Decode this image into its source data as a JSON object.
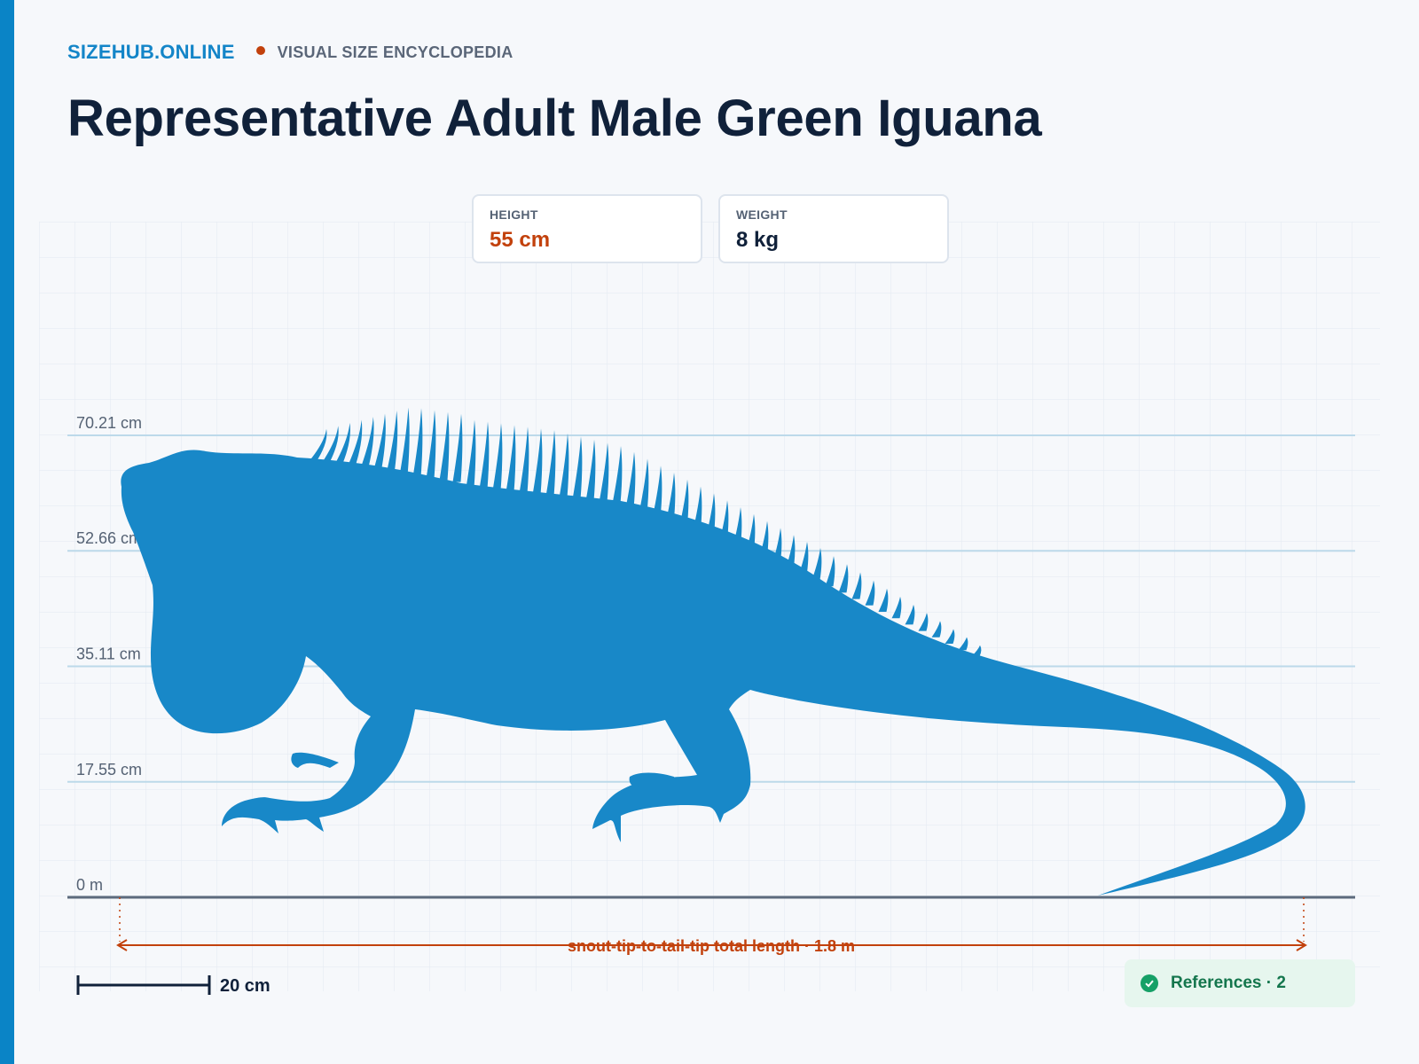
{
  "brand": {
    "name": "SIZEHUB.ONLINE",
    "tagline": "VISUAL SIZE ENCYCLOPEDIA"
  },
  "title": "Representative Adult Male Green Iguana",
  "stats": {
    "height": {
      "label": "HEIGHT",
      "value": "55 cm"
    },
    "weight": {
      "label": "WEIGHT",
      "value": "8 kg"
    }
  },
  "colors": {
    "accent_blue": "#0a84c6",
    "silhouette": "#1888c8",
    "accent_orange": "#c2410c",
    "reference_green": "#16a067"
  },
  "chart_data": {
    "type": "size-comparison",
    "subject": "green iguana silhouette",
    "unit": "cm",
    "gridlines": [
      {
        "value": 0,
        "label": "0 m"
      },
      {
        "value": 17.55,
        "label": "17.55 cm"
      },
      {
        "value": 35.11,
        "label": "35.11 cm"
      },
      {
        "value": 52.66,
        "label": "52.66 cm"
      },
      {
        "value": 70.21,
        "label": "70.21 cm"
      }
    ],
    "y_range": [
      0,
      70.21
    ],
    "length_annotation": {
      "label": "snout-tip-to-tail-tip total length · 1.8 m",
      "value_m": 1.8
    },
    "scale_bar": {
      "label": "20 cm",
      "value_cm": 20
    }
  },
  "references": {
    "label": "References · 2",
    "icon": "check-circle-icon"
  }
}
